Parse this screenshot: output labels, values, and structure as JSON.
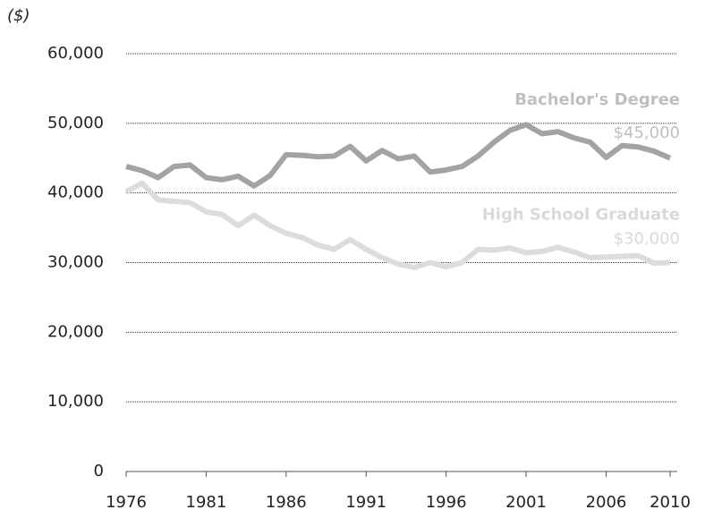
{
  "chart_data": {
    "type": "line",
    "y_label": "($)",
    "x": [
      1976,
      1977,
      1978,
      1979,
      1980,
      1981,
      1982,
      1983,
      1984,
      1985,
      1986,
      1987,
      1988,
      1989,
      1990,
      1991,
      1992,
      1993,
      1994,
      1995,
      1996,
      1997,
      1998,
      1999,
      2000,
      2001,
      2002,
      2003,
      2004,
      2005,
      2006,
      2007,
      2008,
      2009,
      2010
    ],
    "series": [
      {
        "name": "Bachelor's Degree",
        "color": "#a3a3a3",
        "label_color": "#bfbfbf",
        "values": [
          43800,
          43200,
          42200,
          43800,
          44000,
          42200,
          41900,
          42400,
          41000,
          42500,
          45500,
          45400,
          45200,
          45300,
          46700,
          44600,
          46100,
          44900,
          45300,
          43000,
          43300,
          43800,
          45300,
          47300,
          49000,
          49800,
          48500,
          48800,
          47900,
          47300,
          45100,
          46800,
          46600,
          46000,
          45000
        ],
        "value_labels": [
          null,
          null,
          null,
          null,
          null,
          null,
          null,
          null,
          null,
          null,
          null,
          null,
          null,
          null,
          null,
          null,
          null,
          null,
          null,
          null,
          null,
          null,
          null,
          null,
          null,
          null,
          null,
          null,
          null,
          null,
          null,
          null,
          null,
          null,
          "$45,000"
        ]
      },
      {
        "name": "High School Graduate",
        "color": "#dcdcdc",
        "label_color": "#d9d9d9",
        "values": [
          40200,
          41400,
          39000,
          38800,
          38600,
          37300,
          36900,
          35300,
          36800,
          35300,
          34200,
          33600,
          32500,
          31900,
          33300,
          31900,
          30700,
          29800,
          29300,
          30000,
          29400,
          30000,
          31900,
          31800,
          32100,
          31400,
          31600,
          32200,
          31500,
          30700,
          30800,
          30900,
          31000,
          29900,
          30000
        ],
        "value_labels": [
          null,
          null,
          null,
          null,
          null,
          null,
          null,
          null,
          null,
          null,
          null,
          null,
          null,
          null,
          null,
          null,
          null,
          null,
          null,
          null,
          null,
          null,
          null,
          null,
          null,
          null,
          null,
          null,
          null,
          null,
          null,
          null,
          null,
          null,
          "$30,000"
        ]
      }
    ],
    "xlim": [
      1976,
      2010
    ],
    "xticks": [
      1976,
      1981,
      1986,
      1991,
      1996,
      2001,
      2006,
      2010
    ],
    "ylim": [
      0,
      60000
    ],
    "yticks": [
      0,
      {
        "value": 10000,
        "label": "10,000"
      },
      {
        "value": 20000,
        "label": "20,000"
      },
      {
        "value": 30000,
        "label": "30,000"
      },
      {
        "value": 40000,
        "label": "40,000"
      },
      {
        "value": 50000,
        "label": "50,000"
      },
      {
        "value": 60000,
        "label": "60,000"
      }
    ],
    "grid": true
  }
}
